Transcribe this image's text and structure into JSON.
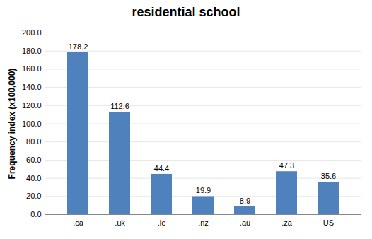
{
  "chart_data": {
    "type": "bar",
    "title": "residential school",
    "y_label": "Frequency index (x100,000)",
    "categories": [
      ".ca",
      ".uk",
      ".ie",
      ".nz",
      ".au",
      ".za",
      "US"
    ],
    "values": [
      178.2,
      112.6,
      44.4,
      19.9,
      8.9,
      47.3,
      35.6
    ],
    "color": "#4f81bd",
    "ylim": [
      0,
      200
    ],
    "yticks": [
      {
        "value": 0,
        "label": "0.0"
      },
      {
        "value": 20,
        "label": "20.0"
      },
      {
        "value": 40,
        "label": "40.0"
      },
      {
        "value": 60,
        "label": "60.0"
      },
      {
        "value": 80,
        "label": "80.0"
      },
      {
        "value": 100,
        "label": "100.0"
      },
      {
        "value": 120,
        "label": "120.0"
      },
      {
        "value": 140,
        "label": "140.0"
      },
      {
        "value": 160,
        "label": "160.0"
      },
      {
        "value": 180,
        "label": "180.0"
      },
      {
        "value": 200,
        "label": "200.0"
      }
    ],
    "grid": true,
    "data_labels": true
  }
}
